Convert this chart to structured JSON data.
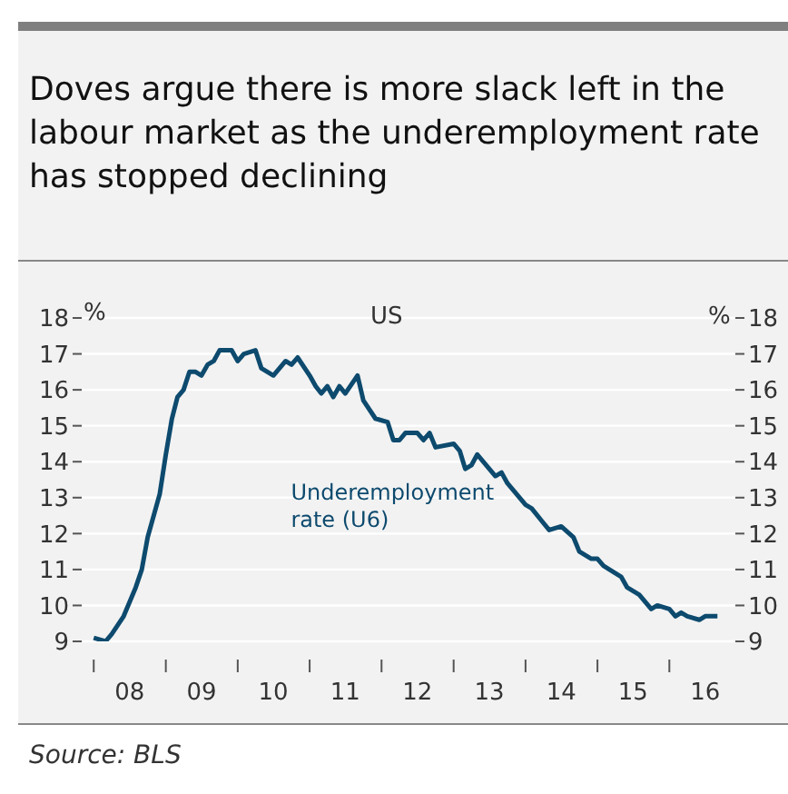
{
  "chart_data": {
    "type": "line",
    "title": "Doves argue there is more slack left in the labour market as the underemployment rate has stopped declining",
    "subtitle": "US",
    "ylabel": "%",
    "y2label": "%",
    "annotations": [
      "Source: BLS"
    ],
    "x": [
      "2008-01",
      "2008-03",
      "2008-04",
      "2008-06",
      "2008-08",
      "2008-09",
      "2008-10",
      "2008-12",
      "2009-01",
      "2009-02",
      "2009-03",
      "2009-04",
      "2009-05",
      "2009-06",
      "2009-07",
      "2009-08",
      "2009-09",
      "2009-10",
      "2009-12",
      "2010-01",
      "2010-02",
      "2010-04",
      "2010-05",
      "2010-07",
      "2010-08",
      "2010-09",
      "2010-10",
      "2010-11",
      "2011-01",
      "2011-02",
      "2011-03",
      "2011-04",
      "2011-05",
      "2011-06",
      "2011-07",
      "2011-09",
      "2011-10",
      "2011-12",
      "2012-02",
      "2012-03",
      "2012-04",
      "2012-05",
      "2012-07",
      "2012-08",
      "2012-09",
      "2012-10",
      "2013-01",
      "2013-02",
      "2013-03",
      "2013-04",
      "2013-05",
      "2013-07",
      "2013-08",
      "2013-09",
      "2013-10",
      "2013-11",
      "2014-01",
      "2014-02",
      "2014-04",
      "2014-05",
      "2014-07",
      "2014-09",
      "2014-10",
      "2014-12",
      "2015-01",
      "2015-02",
      "2015-05",
      "2015-06",
      "2015-08",
      "2015-10",
      "2015-11",
      "2016-01",
      "2016-02",
      "2016-03",
      "2016-04",
      "2016-06",
      "2016-07",
      "2016-09"
    ],
    "series": [
      {
        "name": "Underemployment rate (U6)",
        "color": "#0d4a6e",
        "values": [
          9.1,
          9.0,
          9.2,
          9.7,
          10.5,
          11.0,
          11.9,
          13.1,
          14.2,
          15.2,
          15.8,
          16.0,
          16.5,
          16.5,
          16.4,
          16.7,
          16.8,
          17.1,
          17.1,
          16.8,
          17.0,
          17.1,
          16.6,
          16.4,
          16.6,
          16.8,
          16.7,
          16.9,
          16.4,
          16.1,
          15.9,
          16.1,
          15.8,
          16.1,
          15.9,
          16.4,
          15.7,
          15.2,
          15.1,
          14.6,
          14.6,
          14.8,
          14.8,
          14.6,
          14.8,
          14.4,
          14.5,
          14.3,
          13.8,
          13.9,
          14.2,
          13.8,
          13.6,
          13.7,
          13.4,
          13.2,
          12.8,
          12.7,
          12.3,
          12.1,
          12.2,
          11.9,
          11.5,
          11.3,
          11.3,
          11.1,
          10.8,
          10.5,
          10.3,
          9.9,
          10.0,
          9.9,
          9.7,
          9.8,
          9.7,
          9.6,
          9.7,
          9.7
        ]
      }
    ],
    "xlim": [
      "2007-11",
      "2016-12"
    ],
    "xticks": [
      {
        "value": "2008-01",
        "label": null
      },
      {
        "value": "2008-07",
        "label": "08"
      },
      {
        "value": "2009-01",
        "label": null
      },
      {
        "value": "2009-07",
        "label": "09"
      },
      {
        "value": "2010-01",
        "label": null
      },
      {
        "value": "2010-07",
        "label": "10"
      },
      {
        "value": "2011-01",
        "label": null
      },
      {
        "value": "2011-07",
        "label": "11"
      },
      {
        "value": "2012-01",
        "label": null
      },
      {
        "value": "2012-07",
        "label": "12"
      },
      {
        "value": "2013-01",
        "label": null
      },
      {
        "value": "2013-07",
        "label": "13"
      },
      {
        "value": "2014-01",
        "label": null
      },
      {
        "value": "2014-07",
        "label": "14"
      },
      {
        "value": "2015-01",
        "label": null
      },
      {
        "value": "2015-07",
        "label": "15"
      },
      {
        "value": "2016-01",
        "label": null
      },
      {
        "value": "2016-07",
        "label": "16"
      }
    ],
    "ylim": [
      9,
      18
    ],
    "yticks": [
      9,
      10,
      11,
      12,
      13,
      14,
      15,
      16,
      17,
      18
    ],
    "y2lim": [
      9,
      18
    ],
    "y2ticks": [
      9,
      10,
      11,
      12,
      13,
      14,
      15,
      16,
      17,
      18
    ],
    "grid": "y",
    "legend": false,
    "marker": "none",
    "line_style": "solid"
  }
}
